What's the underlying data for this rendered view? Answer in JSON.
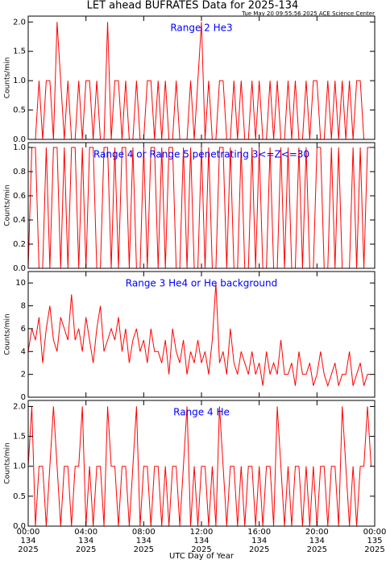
{
  "title": "LET ahead BUFRATES Data for 2025-134",
  "subtitle": "Tue May 20 09:55:56 2025 ACE Science Center",
  "xlabel": "UTC Day of Year",
  "chart_data": [
    {
      "type": "line",
      "annotation": "Range 2 He3",
      "ylabel": "Counts/min",
      "color": "#ff0000",
      "annotation_color": "#0000ff",
      "xlim": [
        0,
        24
      ],
      "xticks": [
        0,
        4,
        8,
        12,
        16,
        20,
        24
      ],
      "ylim": [
        0,
        2.1
      ],
      "yticks": [
        {
          "value": 0,
          "label": "0.0"
        },
        {
          "value": 0.5,
          "label": "0.5"
        },
        {
          "value": 1,
          "label": "1.0"
        },
        {
          "value": 1.5,
          "label": "1.5"
        },
        {
          "value": 2,
          "label": "2.0"
        }
      ],
      "x": [
        0,
        0.25,
        0.5,
        0.75,
        1,
        1.25,
        1.5,
        1.75,
        2,
        2.25,
        2.5,
        2.75,
        3,
        3.25,
        3.5,
        3.75,
        4,
        4.25,
        4.5,
        4.75,
        5,
        5.25,
        5.5,
        5.75,
        6,
        6.25,
        6.5,
        6.75,
        7,
        7.25,
        7.5,
        7.75,
        8,
        8.25,
        8.5,
        8.75,
        9,
        9.25,
        9.5,
        9.75,
        10,
        10.25,
        10.5,
        10.75,
        11,
        11.25,
        11.5,
        11.75,
        12,
        12.25,
        12.5,
        12.75,
        13,
        13.25,
        13.5,
        13.75,
        14,
        14.25,
        14.5,
        14.75,
        15,
        15.25,
        15.5,
        15.75,
        16,
        16.25,
        16.5,
        16.75,
        17,
        17.25,
        17.5,
        17.75,
        18,
        18.25,
        18.5,
        18.75,
        19,
        19.25,
        19.5,
        19.75,
        20,
        20.25,
        20.5,
        20.75,
        21,
        21.25,
        21.5,
        21.75,
        22,
        22.25,
        22.5,
        22.75,
        23,
        23.25,
        23.5,
        23.75
      ],
      "values": [
        0,
        0,
        0,
        1,
        0,
        1,
        1,
        0,
        2,
        1,
        0,
        1,
        0,
        0,
        1,
        0,
        1,
        1,
        0,
        1,
        0,
        0,
        2,
        0,
        1,
        1,
        0,
        1,
        0,
        0,
        1,
        0,
        0,
        1,
        1,
        0,
        1,
        0,
        1,
        0,
        0,
        1,
        0,
        0,
        0,
        1,
        0,
        1,
        2,
        0,
        1,
        0,
        0,
        1,
        1,
        0,
        0,
        1,
        0,
        1,
        0,
        0,
        1,
        0,
        1,
        0,
        0,
        1,
        0,
        1,
        0,
        0,
        1,
        0,
        1,
        0,
        0,
        1,
        0,
        1,
        1,
        0,
        0,
        1,
        0,
        1,
        0,
        1,
        0,
        1,
        0,
        1,
        1,
        0,
        0,
        0
      ]
    },
    {
      "type": "line",
      "annotation": "Range 4 or Range 5 penetrating 3<=Z<=30",
      "ylabel": "Counts/min",
      "color": "#ff0000",
      "annotation_color": "#0000ff",
      "xlim": [
        0,
        24
      ],
      "xticks": [
        0,
        4,
        8,
        12,
        16,
        20,
        24
      ],
      "ylim": [
        0,
        1.04
      ],
      "yticks": [
        {
          "value": 0,
          "label": "0.0"
        },
        {
          "value": 0.2,
          "label": "0.2"
        },
        {
          "value": 0.4,
          "label": "0.4"
        },
        {
          "value": 0.6,
          "label": "0.6"
        },
        {
          "value": 0.8,
          "label": "0.8"
        },
        {
          "value": 1,
          "label": "1.0"
        }
      ],
      "x": [
        0,
        0.25,
        0.5,
        0.75,
        1,
        1.25,
        1.5,
        1.75,
        2,
        2.25,
        2.5,
        2.75,
        3,
        3.25,
        3.5,
        3.75,
        4,
        4.25,
        4.5,
        4.75,
        5,
        5.25,
        5.5,
        5.75,
        6,
        6.25,
        6.5,
        6.75,
        7,
        7.25,
        7.5,
        7.75,
        8,
        8.25,
        8.5,
        8.75,
        9,
        9.25,
        9.5,
        9.75,
        10,
        10.25,
        10.5,
        10.75,
        11,
        11.25,
        11.5,
        11.75,
        12,
        12.25,
        12.5,
        12.75,
        13,
        13.25,
        13.5,
        13.75,
        14,
        14.25,
        14.5,
        14.75,
        15,
        15.25,
        15.5,
        15.75,
        16,
        16.25,
        16.5,
        16.75,
        17,
        17.25,
        17.5,
        17.75,
        18,
        18.25,
        18.5,
        18.75,
        19,
        19.25,
        19.5,
        19.75,
        20,
        20.25,
        20.5,
        20.75,
        21,
        21.25,
        21.5,
        21.75,
        22,
        22.25,
        22.5,
        22.75,
        23,
        23.25,
        23.5,
        23.75
      ],
      "values": [
        0,
        1,
        1,
        0,
        0,
        1,
        0,
        1,
        1,
        0,
        1,
        0,
        1,
        1,
        0,
        1,
        0,
        1,
        1,
        0,
        0,
        1,
        1,
        0,
        1,
        0,
        1,
        1,
        0,
        1,
        0,
        0,
        1,
        0,
        1,
        1,
        0,
        1,
        0,
        1,
        1,
        0,
        0,
        1,
        0,
        1,
        0,
        0,
        1,
        0,
        1,
        0,
        0,
        1,
        1,
        0,
        1,
        0,
        0,
        1,
        0,
        0,
        1,
        0,
        1,
        0,
        0,
        1,
        0,
        0,
        1,
        0,
        1,
        0,
        0,
        1,
        0,
        1,
        0,
        0,
        1,
        1,
        0,
        0,
        1,
        0,
        1,
        0,
        0,
        0,
        1,
        0,
        1,
        0,
        1,
        1
      ]
    },
    {
      "type": "line",
      "annotation": "Range 3 He4 or He background",
      "ylabel": "Counts/min",
      "color": "#ff0000",
      "annotation_color": "#0000ff",
      "xlim": [
        0,
        24
      ],
      "xticks": [
        0,
        4,
        8,
        12,
        16,
        20,
        24
      ],
      "ylim": [
        0,
        11
      ],
      "yticks": [
        0,
        2,
        4,
        6,
        8,
        10
      ],
      "x": [
        0,
        0.25,
        0.5,
        0.75,
        1,
        1.25,
        1.5,
        1.75,
        2,
        2.25,
        2.5,
        2.75,
        3,
        3.25,
        3.5,
        3.75,
        4,
        4.25,
        4.5,
        4.75,
        5,
        5.25,
        5.5,
        5.75,
        6,
        6.25,
        6.5,
        6.75,
        7,
        7.25,
        7.5,
        7.75,
        8,
        8.25,
        8.5,
        8.75,
        9,
        9.25,
        9.5,
        9.75,
        10,
        10.25,
        10.5,
        10.75,
        11,
        11.25,
        11.5,
        11.75,
        12,
        12.25,
        12.5,
        12.75,
        13,
        13.25,
        13.5,
        13.75,
        14,
        14.25,
        14.5,
        14.75,
        15,
        15.25,
        15.5,
        15.75,
        16,
        16.25,
        16.5,
        16.75,
        17,
        17.25,
        17.5,
        17.75,
        18,
        18.25,
        18.5,
        18.75,
        19,
        19.25,
        19.5,
        19.75,
        20,
        20.25,
        20.5,
        20.75,
        21,
        21.25,
        21.5,
        21.75,
        22,
        22.25,
        22.5,
        22.75,
        23,
        23.25,
        23.5,
        23.75
      ],
      "values": [
        4,
        6,
        5,
        7,
        3,
        6,
        8,
        5,
        4,
        7,
        6,
        5,
        9,
        5,
        6,
        4,
        7,
        5,
        3,
        6,
        8,
        4,
        5,
        6,
        5,
        7,
        4,
        6,
        3,
        5,
        6,
        4,
        5,
        3,
        6,
        4,
        4,
        3,
        5,
        2,
        6,
        4,
        3,
        5,
        2,
        4,
        3,
        5,
        3,
        4,
        2,
        5,
        10,
        3,
        4,
        2,
        6,
        3,
        2,
        4,
        3,
        2,
        4,
        2,
        3,
        1,
        4,
        2,
        3,
        2,
        5,
        2,
        2,
        3,
        1,
        4,
        2,
        2,
        3,
        1,
        2,
        4,
        2,
        1,
        2,
        3,
        1,
        2,
        2,
        4,
        1,
        2,
        3,
        1,
        2,
        2
      ]
    },
    {
      "type": "line",
      "annotation": "Range 4 He",
      "ylabel": "Counts/min",
      "color": "#ff0000",
      "annotation_color": "#0000ff",
      "xlim": [
        0,
        24
      ],
      "xticks": [
        {
          "value": 0,
          "label": "00:00",
          "day": "134",
          "year": "2025"
        },
        {
          "value": 4,
          "label": "04:00",
          "day": "134",
          "year": "2025"
        },
        {
          "value": 8,
          "label": "08:00",
          "day": "134",
          "year": "2025"
        },
        {
          "value": 12,
          "label": "12:00",
          "day": "134",
          "year": "2025"
        },
        {
          "value": 16,
          "label": "16:00",
          "day": "134",
          "year": "2025"
        },
        {
          "value": 20,
          "label": "20:00",
          "day": "134",
          "year": "2025"
        },
        {
          "value": 24,
          "label": "00:00",
          "day": "135",
          "year": "2025"
        }
      ],
      "ylim": [
        0,
        2.1
      ],
      "yticks": [
        {
          "value": 0,
          "label": "0.0"
        },
        {
          "value": 0.5,
          "label": "0.5"
        },
        {
          "value": 1,
          "label": "1.0"
        },
        {
          "value": 1.5,
          "label": "1.5"
        },
        {
          "value": 2,
          "label": "2.0"
        }
      ],
      "x": [
        0,
        0.25,
        0.5,
        0.75,
        1,
        1.25,
        1.5,
        1.75,
        2,
        2.25,
        2.5,
        2.75,
        3,
        3.25,
        3.5,
        3.75,
        4,
        4.25,
        4.5,
        4.75,
        5,
        5.25,
        5.5,
        5.75,
        6,
        6.25,
        6.5,
        6.75,
        7,
        7.25,
        7.5,
        7.75,
        8,
        8.25,
        8.5,
        8.75,
        9,
        9.25,
        9.5,
        9.75,
        10,
        10.25,
        10.5,
        10.75,
        11,
        11.25,
        11.5,
        11.75,
        12,
        12.25,
        12.5,
        12.75,
        13,
        13.25,
        13.5,
        13.75,
        14,
        14.25,
        14.5,
        14.75,
        15,
        15.25,
        15.5,
        15.75,
        16,
        16.25,
        16.5,
        16.75,
        17,
        17.25,
        17.5,
        17.75,
        18,
        18.25,
        18.5,
        18.75,
        19,
        19.25,
        19.5,
        19.75,
        20,
        20.25,
        20.5,
        20.75,
        21,
        21.25,
        21.5,
        21.75,
        22,
        22.25,
        22.5,
        22.75,
        23,
        23.25,
        23.5,
        23.75
      ],
      "values": [
        1,
        2,
        0,
        1,
        1,
        0,
        1,
        2,
        1,
        0,
        1,
        1,
        0,
        1,
        1,
        2,
        0,
        1,
        0,
        1,
        1,
        0,
        2,
        1,
        1,
        0,
        1,
        1,
        0,
        1,
        2,
        0,
        1,
        1,
        0,
        1,
        1,
        0,
        1,
        0,
        1,
        1,
        0,
        1,
        2,
        0,
        1,
        0,
        1,
        1,
        0,
        1,
        0,
        2,
        1,
        0,
        1,
        1,
        0,
        1,
        0,
        1,
        1,
        0,
        1,
        0,
        1,
        1,
        0,
        2,
        1,
        0,
        1,
        0,
        1,
        1,
        0,
        1,
        0,
        1,
        0,
        1,
        1,
        0,
        1,
        1,
        0,
        2,
        1,
        0,
        1,
        0,
        1,
        1,
        2,
        1
      ]
    }
  ]
}
